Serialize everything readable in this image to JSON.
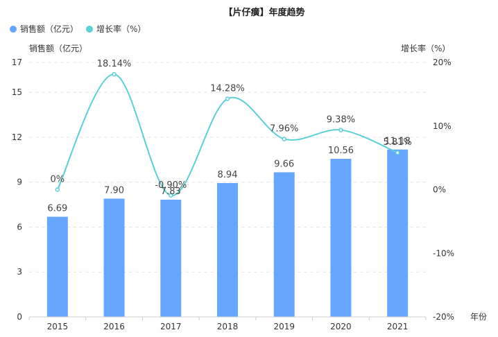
{
  "chart_data": {
    "type": "bar+line",
    "title": "【片仔癀】年度趋势",
    "categories": [
      "2015",
      "2016",
      "2017",
      "2018",
      "2019",
      "2020",
      "2021"
    ],
    "series": [
      {
        "name": "销售额（亿元）",
        "type": "bar",
        "axis": "left",
        "values": [
          6.69,
          7.9,
          7.83,
          8.94,
          9.66,
          10.56,
          11.18
        ],
        "labels": [
          "6.69",
          "7.90",
          "7.83",
          "8.94",
          "9.66",
          "10.56",
          "11.18"
        ]
      },
      {
        "name": "增长率（%）",
        "type": "line",
        "axis": "right",
        "smooth": true,
        "values": [
          0,
          18.14,
          -0.9,
          14.28,
          7.96,
          9.38,
          5.81
        ],
        "labels": [
          "0%",
          "18.14%",
          "-0.90%",
          "14.28%",
          "7.96%",
          "9.38%",
          "5.81%"
        ]
      }
    ],
    "ylabel_left": "销售额（亿元）",
    "ylabel_right": "增长率（%）",
    "xlabel": "年份",
    "ylim_left": [
      0,
      17
    ],
    "yticks_left": [
      "0",
      "3",
      "6",
      "9",
      "12",
      "15",
      "17"
    ],
    "ylim_right": [
      -20,
      20
    ],
    "yticks_right": [
      "-20%",
      "-10%",
      "0%",
      "10%",
      "20%"
    ],
    "grid": true,
    "legend_position": "top-left",
    "colors": {
      "bar": "#66a6ff",
      "line": "#5ccfd6",
      "grid": "#e4e4e4",
      "axis": "#cccccc"
    }
  }
}
